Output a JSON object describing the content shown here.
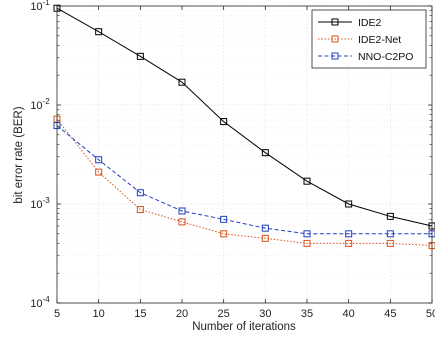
{
  "chart_data": {
    "type": "line",
    "xlabel": "Number of iterations",
    "ylabel": "bit error rate (BER)",
    "x": [
      5,
      10,
      15,
      20,
      25,
      30,
      35,
      40,
      45,
      50
    ],
    "xlim": [
      5,
      50
    ],
    "xticks": [
      5,
      10,
      15,
      20,
      25,
      30,
      35,
      40,
      45,
      50
    ],
    "yscale": "log",
    "ylim": [
      0.0001,
      0.1
    ],
    "yticks": [
      {
        "value": 0.1,
        "base": "10",
        "exp": "-1"
      },
      {
        "value": 0.01,
        "base": "10",
        "exp": "-2"
      },
      {
        "value": 0.001,
        "base": "10",
        "exp": "-3"
      },
      {
        "value": 0.0001,
        "base": "10",
        "exp": "-4"
      }
    ],
    "grid": true,
    "legend_position": "top-right",
    "series": [
      {
        "name": "IDE2",
        "color": "#000000",
        "line_style": "solid",
        "marker": "square",
        "values": [
          0.095,
          0.055,
          0.031,
          0.017,
          0.0068,
          0.0033,
          0.0017,
          0.001,
          0.00075,
          0.0006
        ]
      },
      {
        "name": "IDE2-Net",
        "color": "#d95319",
        "line_style": "dotted",
        "marker": "square",
        "values": [
          0.0072,
          0.0021,
          0.00088,
          0.00066,
          0.0005,
          0.00045,
          0.0004,
          0.0004,
          0.0004,
          0.00038
        ]
      },
      {
        "name": "NNO-C2PO",
        "color": "#1f3fbf",
        "line_style": "dashed",
        "marker": "square",
        "values": [
          0.0062,
          0.0028,
          0.0013,
          0.00085,
          0.0007,
          0.00057,
          0.0005,
          0.0005,
          0.0005,
          0.0005
        ]
      }
    ]
  }
}
